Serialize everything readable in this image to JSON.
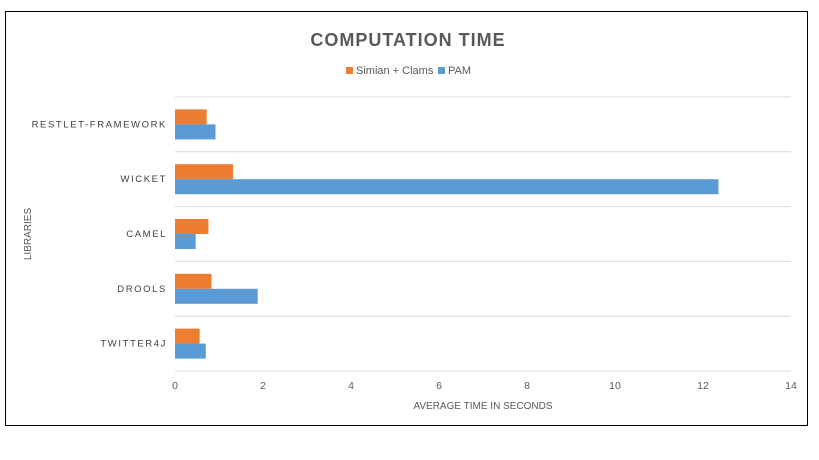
{
  "chart_data": {
    "type": "bar",
    "orientation": "horizontal",
    "title": "COMPUTATION TIME",
    "xlabel": "AVERAGE TIME IN SECONDS",
    "ylabel": "LIBRARIES",
    "categories": [
      "RESTLET-FRAMEWORK",
      "WICKET",
      "CAMEL",
      "DROOLS",
      "TWITTER4J"
    ],
    "series": [
      {
        "name": "Simian + Clams",
        "color": "#ED7D31",
        "values": [
          0.72,
          1.32,
          0.76,
          0.83,
          0.56
        ]
      },
      {
        "name": "PAM",
        "color": "#5B9BD5",
        "values": [
          0.92,
          12.35,
          0.47,
          1.88,
          0.7
        ]
      }
    ],
    "xlim": [
      0,
      14
    ],
    "xticks": [
      "0",
      "2",
      "4",
      "6",
      "8",
      "10",
      "12",
      "14"
    ],
    "grid": "horizontal category separators",
    "legend_position": "top"
  }
}
